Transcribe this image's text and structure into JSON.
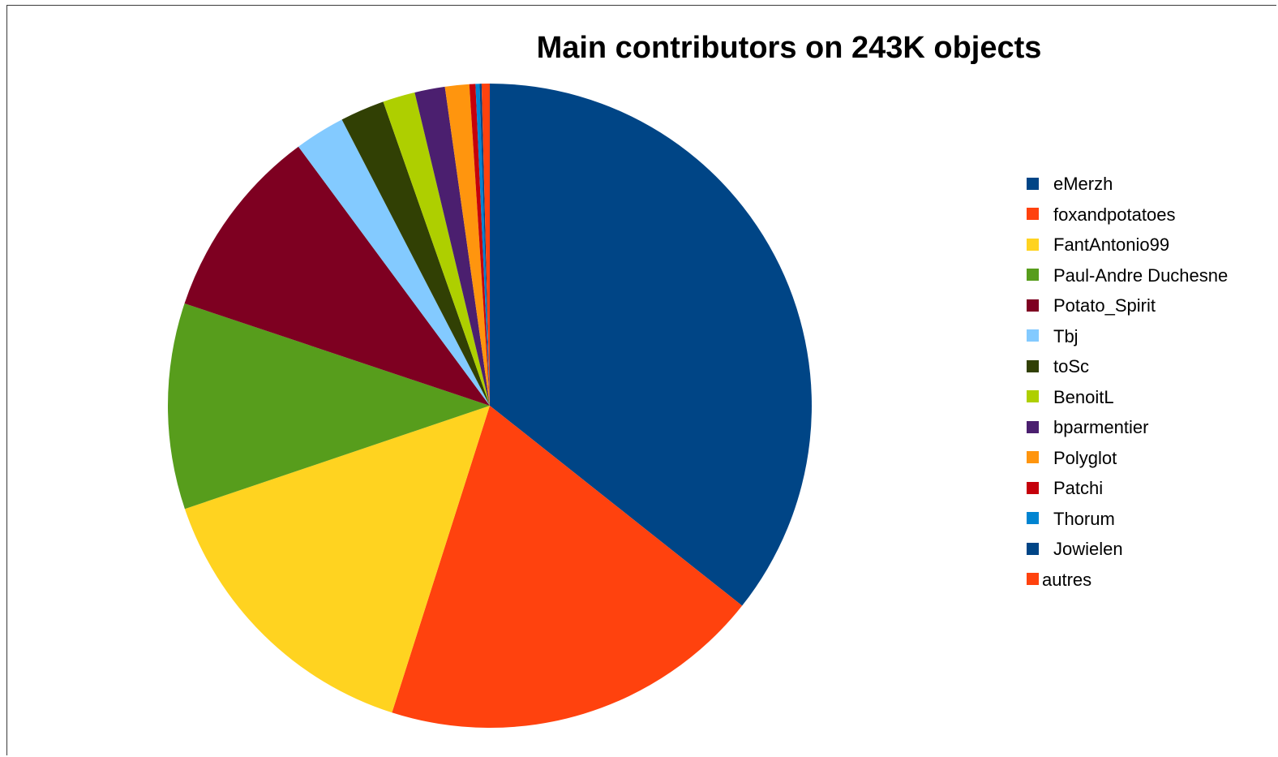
{
  "chart_data": {
    "type": "pie",
    "title": "Main contributors on 243K objects",
    "legend_position": "right",
    "series": [
      {
        "name": "eMerzh",
        "value": 35.2,
        "color": "#004586"
      },
      {
        "name": "foxandpotatoes",
        "value": 19.0,
        "color": "#ff420e"
      },
      {
        "name": "FantAntonio99",
        "value": 14.7,
        "color": "#ffd320"
      },
      {
        "name": "Paul-Andre Duchesne",
        "value": 10.2,
        "color": "#579d1c"
      },
      {
        "name": "Potato_Spirit",
        "value": 9.6,
        "color": "#7e0021"
      },
      {
        "name": "Tbj",
        "value": 2.5,
        "color": "#83caff"
      },
      {
        "name": "toSc",
        "value": 2.2,
        "color": "#314004"
      },
      {
        "name": "BenoitL",
        "value": 1.6,
        "color": "#aecf00"
      },
      {
        "name": "bparmentier",
        "value": 1.5,
        "color": "#4b1f6f"
      },
      {
        "name": "Polyglot",
        "value": 1.2,
        "color": "#ff950e"
      },
      {
        "name": "Patchi",
        "value": 0.3,
        "color": "#c5000b"
      },
      {
        "name": "Thorum",
        "value": 0.2,
        "color": "#0084d1"
      },
      {
        "name": "Jowielen",
        "value": 0.1,
        "color": "#004586"
      },
      {
        "name": "autres",
        "value": 0.4,
        "color": "#ff420e"
      }
    ]
  }
}
